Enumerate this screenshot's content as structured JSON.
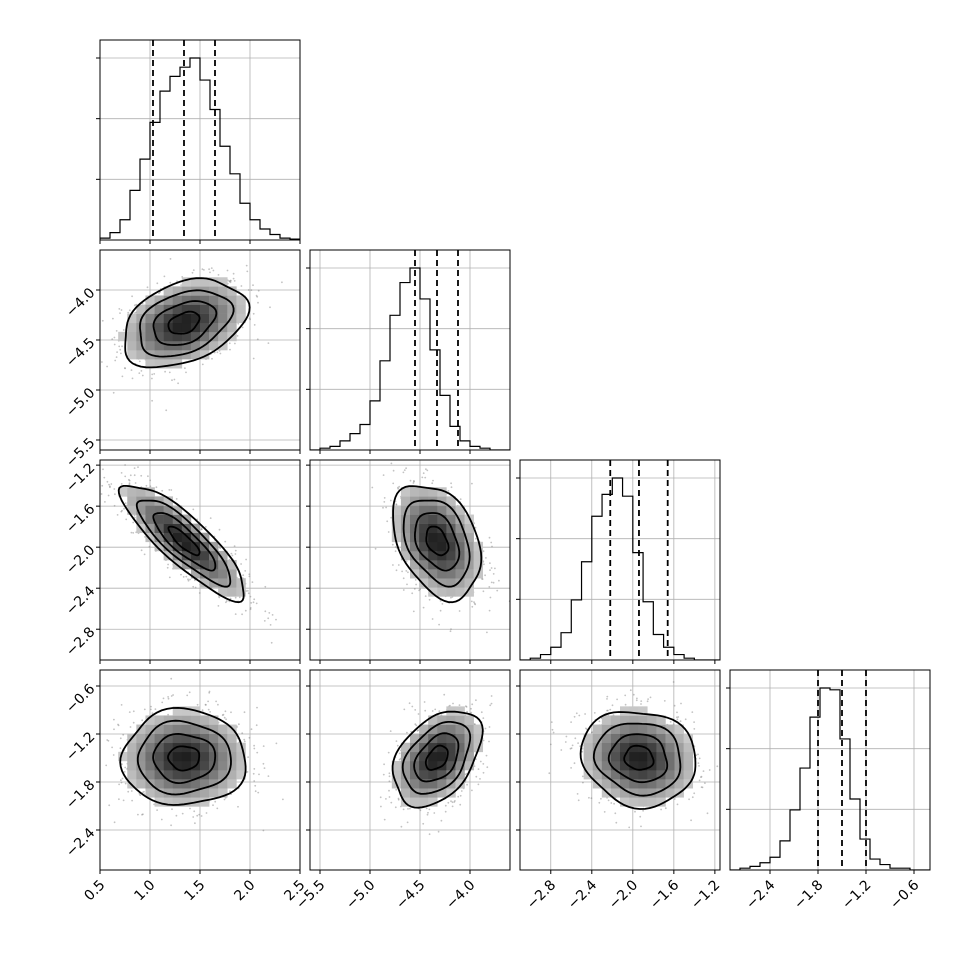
{
  "chart_data": {
    "type": "corner",
    "grid": true,
    "parameters": [
      {
        "index": 0,
        "range": [
          0.5,
          2.5
        ],
        "ticks": [
          "0.5",
          "1.0",
          "1.5",
          "2.0",
          "2.5"
        ],
        "tick_values": [
          0.5,
          1.0,
          1.5,
          2.0,
          2.5
        ],
        "quantiles": [
          1.03,
          1.34,
          1.65
        ],
        "hist_x_edges_start": 0.5,
        "hist_bin_width": 0.1,
        "hist_counts": [
          0.01,
          0.04,
          0.11,
          0.27,
          0.44,
          0.64,
          0.81,
          0.89,
          0.94,
          0.99,
          0.87,
          0.71,
          0.51,
          0.36,
          0.2,
          0.11,
          0.06,
          0.03,
          0.01,
          0.005
        ]
      },
      {
        "index": 1,
        "range": [
          -5.6,
          -3.6
        ],
        "ticks": [
          "-5.5",
          "-5.0",
          "-4.5",
          "-4.0"
        ],
        "tick_values": [
          -5.5,
          -5.0,
          -4.5,
          -4.0
        ],
        "quantiles": [
          -4.55,
          -4.33,
          -4.12
        ],
        "hist_x_edges_start": -5.6,
        "hist_bin_width": 0.1,
        "hist_counts": [
          0.0,
          0.01,
          0.02,
          0.05,
          0.09,
          0.14,
          0.27,
          0.49,
          0.74,
          0.92,
          1.0,
          0.83,
          0.55,
          0.3,
          0.13,
          0.05,
          0.02,
          0.01,
          0.0,
          0.0
        ]
      },
      {
        "index": 2,
        "range": [
          -3.1,
          -1.15
        ],
        "ticks": [
          "-2.8",
          "-2.4",
          "-2.0",
          "-1.6",
          "-1.2"
        ],
        "tick_values": [
          -2.8,
          -2.4,
          -2.0,
          -1.6,
          -1.2
        ],
        "quantiles": [
          -2.22,
          -1.94,
          -1.66
        ],
        "hist_x_edges_start": -3.1,
        "hist_bin_width": 0.1,
        "hist_counts": [
          0.0,
          0.01,
          0.03,
          0.07,
          0.15,
          0.33,
          0.54,
          0.79,
          0.91,
          1.0,
          0.9,
          0.59,
          0.32,
          0.14,
          0.07,
          0.03,
          0.01,
          0.0,
          0.0,
          0.0
        ]
      },
      {
        "index": 3,
        "range": [
          -2.9,
          -0.4
        ],
        "ticks": [
          "-2.4",
          "-1.8",
          "-1.2",
          "-0.6"
        ],
        "tick_values": [
          -2.4,
          -1.8,
          -1.2,
          -0.6
        ],
        "quantiles": [
          -1.8,
          -1.5,
          -1.2
        ],
        "hist_x_edges_start": -2.9,
        "hist_bin_width": 0.125,
        "hist_counts": [
          0.0,
          0.01,
          0.02,
          0.04,
          0.07,
          0.16,
          0.33,
          0.56,
          0.84,
          1.0,
          0.99,
          0.72,
          0.39,
          0.17,
          0.06,
          0.03,
          0.01,
          0.01,
          0.0,
          0.0
        ]
      }
    ],
    "pair_y_ticks": {
      "1": [
        "-4.0",
        "-4.5",
        "-5.0",
        "-5.5"
      ],
      "2": [
        "-1.2",
        "-1.6",
        "-2.0",
        "-2.4",
        "-2.8"
      ],
      "3": [
        "-0.6",
        "-1.2",
        "-1.8",
        "-2.4"
      ]
    },
    "pair_stats": [
      {
        "x": 0,
        "y": 1,
        "mean": [
          1.34,
          -4.33
        ],
        "sd": [
          0.31,
          0.22
        ],
        "corr": 0.35
      },
      {
        "x": 0,
        "y": 2,
        "mean": [
          1.34,
          -1.94
        ],
        "sd": [
          0.31,
          0.28
        ],
        "corr": -0.85
      },
      {
        "x": 1,
        "y": 2,
        "mean": [
          -4.33,
          -1.94
        ],
        "sd": [
          0.22,
          0.28
        ],
        "corr": -0.35
      },
      {
        "x": 0,
        "y": 3,
        "mean": [
          1.34,
          -1.5
        ],
        "sd": [
          0.31,
          0.3
        ],
        "corr": 0.0
      },
      {
        "x": 1,
        "y": 3,
        "mean": [
          -4.33,
          -1.5
        ],
        "sd": [
          0.22,
          0.3
        ],
        "corr": 0.4
      },
      {
        "x": 2,
        "y": 3,
        "mean": [
          -1.94,
          -1.5
        ],
        "sd": [
          0.28,
          0.3
        ],
        "corr": -0.1
      }
    ],
    "contour_levels_sigma": [
      0.5,
      1.0,
      1.5,
      2.0
    ]
  }
}
